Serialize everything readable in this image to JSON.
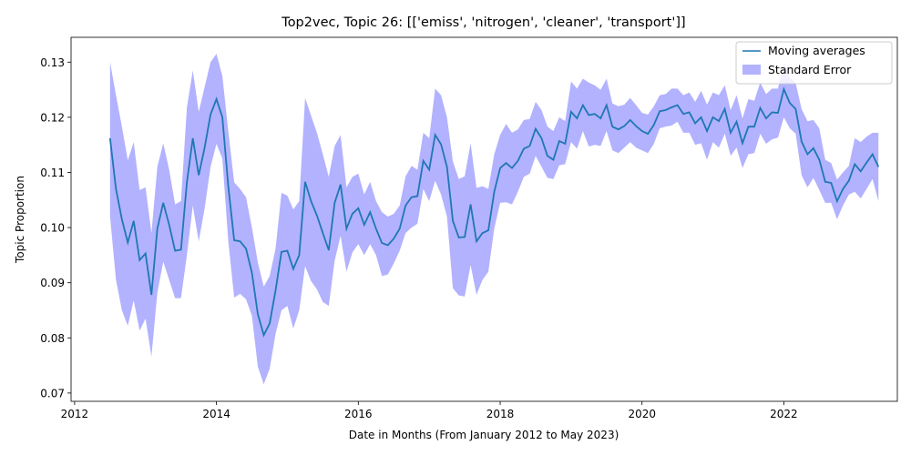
{
  "chart_data": {
    "type": "line",
    "title": "Top2vec, Topic 26: [['emiss', 'nitrogen', 'cleaner', 'transport']]",
    "xlabel": "Date in Months (From January 2012 to May 2023)",
    "ylabel": "Topic Proportion",
    "xlim": [
      2011.95,
      2023.6
    ],
    "ylim": [
      0.0685,
      0.1345
    ],
    "xticks": [
      "2012",
      "2014",
      "2016",
      "2018",
      "2020",
      "2022"
    ],
    "yticks": [
      "0.07",
      "0.08",
      "0.09",
      "0.10",
      "0.11",
      "0.12",
      "0.13"
    ],
    "grid": false,
    "legend_position": "top-right",
    "legend": [
      "Moving averages",
      "Standard Error"
    ],
    "colors": {
      "line": "#1f77b4",
      "band": "#0000ff",
      "band_opacity": 0.3
    },
    "x_start": "2012-07",
    "series": [
      {
        "name": "Moving averages",
        "values": [
          0.1162,
          0.107,
          0.1015,
          0.0973,
          0.1012,
          0.0941,
          0.0953,
          0.0878,
          0.0998,
          0.1045,
          0.1005,
          0.0958,
          0.096,
          0.1082,
          0.1162,
          0.1095,
          0.1145,
          0.1205,
          0.1233,
          0.12,
          0.1075,
          0.0977,
          0.0975,
          0.0962,
          0.0918,
          0.0843,
          0.0805,
          0.0826,
          0.0886,
          0.0956,
          0.0958,
          0.0925,
          0.095,
          0.1083,
          0.1048,
          0.1022,
          0.099,
          0.0959,
          0.1045,
          0.1078,
          0.0998,
          0.1025,
          0.1035,
          0.1005,
          0.1028,
          0.0998,
          0.0972,
          0.0968,
          0.098,
          0.0998,
          0.104,
          0.1055,
          0.1057,
          0.1121,
          0.1105,
          0.1168,
          0.1151,
          0.111,
          0.1012,
          0.0982,
          0.0983,
          0.1042,
          0.0975,
          0.099,
          0.0995,
          0.1065,
          0.1108,
          0.1117,
          0.1108,
          0.1121,
          0.1143,
          0.1148,
          0.1179,
          0.1162,
          0.113,
          0.1123,
          0.1157,
          0.1152,
          0.121,
          0.1198,
          0.1222,
          0.1204,
          0.1206,
          0.1198,
          0.1222,
          0.1183,
          0.1178,
          0.1184,
          0.1195,
          0.1184,
          0.1175,
          0.117,
          0.1186,
          0.1211,
          0.1213,
          0.1218,
          0.1222,
          0.1206,
          0.1209,
          0.1189,
          0.12,
          0.1175,
          0.12,
          0.1193,
          0.1215,
          0.1172,
          0.1192,
          0.1153,
          0.1183,
          0.1183,
          0.1217,
          0.1198,
          0.1209,
          0.1208,
          0.1251,
          0.1226,
          0.1215,
          0.1156,
          0.1133,
          0.1144,
          0.1123,
          0.1083,
          0.1081,
          0.1048,
          0.107,
          0.1085,
          0.1115,
          0.1102,
          0.1118,
          0.1133,
          0.111
        ]
      },
      {
        "name": "Standard Error",
        "upper": [
          0.13,
          0.124,
          0.1183,
          0.1122,
          0.1155,
          0.1068,
          0.1073,
          0.099,
          0.111,
          0.1153,
          0.1105,
          0.1042,
          0.1048,
          0.1218,
          0.1285,
          0.121,
          0.1255,
          0.13,
          0.1315,
          0.1275,
          0.1175,
          0.1082,
          0.107,
          0.1055,
          0.1,
          0.0937,
          0.0893,
          0.0912,
          0.0962,
          0.1063,
          0.1058,
          0.1033,
          0.1048,
          0.1235,
          0.1203,
          0.1172,
          0.1133,
          0.1092,
          0.1148,
          0.1168,
          0.1073,
          0.1092,
          0.1098,
          0.106,
          0.1083,
          0.1048,
          0.1028,
          0.102,
          0.1025,
          0.104,
          0.1093,
          0.1112,
          0.1105,
          0.1172,
          0.1162,
          0.1252,
          0.124,
          0.12,
          0.112,
          0.1088,
          0.1093,
          0.1153,
          0.1072,
          0.1075,
          0.107,
          0.1133,
          0.1168,
          0.1188,
          0.1172,
          0.1178,
          0.1195,
          0.1197,
          0.1228,
          0.1213,
          0.1183,
          0.1175,
          0.12,
          0.1193,
          0.1265,
          0.1252,
          0.127,
          0.1263,
          0.1258,
          0.125,
          0.127,
          0.1225,
          0.122,
          0.1223,
          0.1235,
          0.1222,
          0.1208,
          0.1205,
          0.122,
          0.124,
          0.1242,
          0.1252,
          0.1252,
          0.124,
          0.1245,
          0.1228,
          0.1248,
          0.1223,
          0.1245,
          0.124,
          0.1258,
          0.1213,
          0.124,
          0.1198,
          0.1233,
          0.123,
          0.1263,
          0.1242,
          0.1252,
          0.1252,
          0.13,
          0.1272,
          0.1262,
          0.1215,
          0.1193,
          0.1195,
          0.118,
          0.1123,
          0.1117,
          0.1087,
          0.11,
          0.1112,
          0.1162,
          0.1155,
          0.1165,
          0.1172,
          0.1172
        ],
        "lower": [
          0.102,
          0.0905,
          0.085,
          0.0822,
          0.0868,
          0.0813,
          0.0835,
          0.0766,
          0.0882,
          0.0938,
          0.0905,
          0.0872,
          0.0872,
          0.095,
          0.104,
          0.0975,
          0.1035,
          0.111,
          0.1152,
          0.1125,
          0.0975,
          0.0873,
          0.088,
          0.087,
          0.084,
          0.0748,
          0.0716,
          0.0744,
          0.0807,
          0.085,
          0.0858,
          0.0817,
          0.085,
          0.093,
          0.0903,
          0.0888,
          0.0865,
          0.0858,
          0.094,
          0.0985,
          0.092,
          0.0955,
          0.097,
          0.095,
          0.097,
          0.095,
          0.0912,
          0.0915,
          0.0935,
          0.0958,
          0.099,
          0.1,
          0.1007,
          0.107,
          0.1048,
          0.1085,
          0.106,
          0.102,
          0.089,
          0.0877,
          0.0875,
          0.0932,
          0.0878,
          0.0905,
          0.092,
          0.0998,
          0.1045,
          0.1046,
          0.1042,
          0.1065,
          0.1092,
          0.1098,
          0.113,
          0.111,
          0.109,
          0.1088,
          0.1113,
          0.1115,
          0.1155,
          0.1143,
          0.1175,
          0.1147,
          0.115,
          0.1148,
          0.1175,
          0.114,
          0.1135,
          0.1145,
          0.1155,
          0.1145,
          0.114,
          0.1135,
          0.1152,
          0.118,
          0.1183,
          0.1185,
          0.1192,
          0.1172,
          0.1172,
          0.115,
          0.1153,
          0.1123,
          0.1155,
          0.1145,
          0.117,
          0.113,
          0.1145,
          0.1108,
          0.1133,
          0.1135,
          0.117,
          0.1152,
          0.116,
          0.1163,
          0.12,
          0.118,
          0.117,
          0.1095,
          0.1073,
          0.109,
          0.1068,
          0.1045,
          0.1045,
          0.1015,
          0.104,
          0.106,
          0.1065,
          0.1053,
          0.107,
          0.1088,
          0.1048
        ]
      }
    ]
  }
}
